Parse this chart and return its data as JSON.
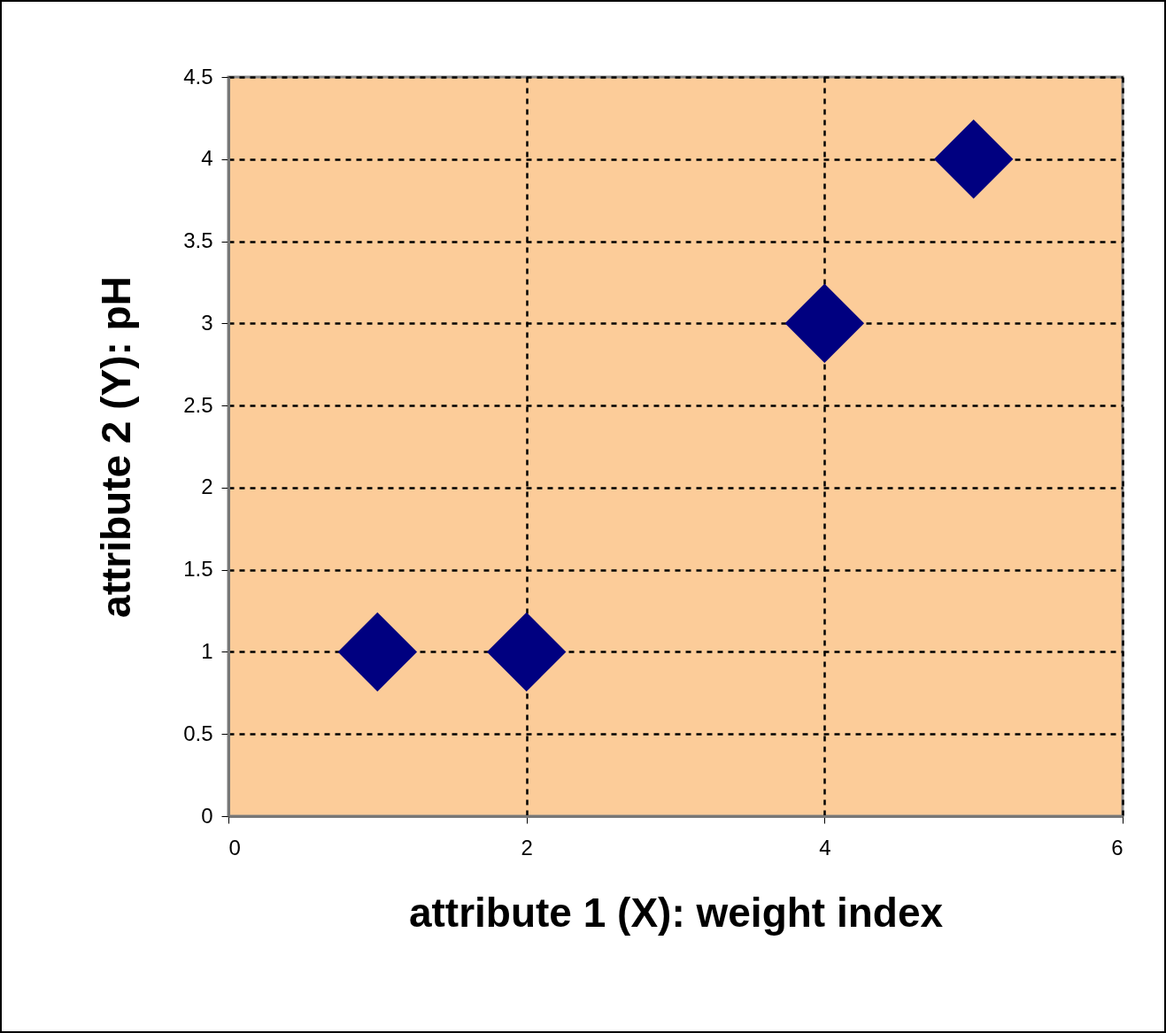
{
  "chart_data": {
    "type": "scatter",
    "xlabel": "attribute 1 (X): weight index",
    "ylabel": "attribute 2 (Y): pH",
    "x": [
      1,
      2,
      4,
      5
    ],
    "series": [
      {
        "color": "#000080",
        "values": [
          1,
          1,
          3,
          4
        ]
      }
    ],
    "marker": "diamond",
    "xlim": [
      0,
      6
    ],
    "xticks": [
      0,
      2,
      4,
      6
    ],
    "ylim": [
      0,
      4.5
    ],
    "yticks": [
      0,
      0.5,
      1,
      1.5,
      2,
      2.5,
      3,
      3.5,
      4,
      4.5
    ],
    "grid": true
  }
}
